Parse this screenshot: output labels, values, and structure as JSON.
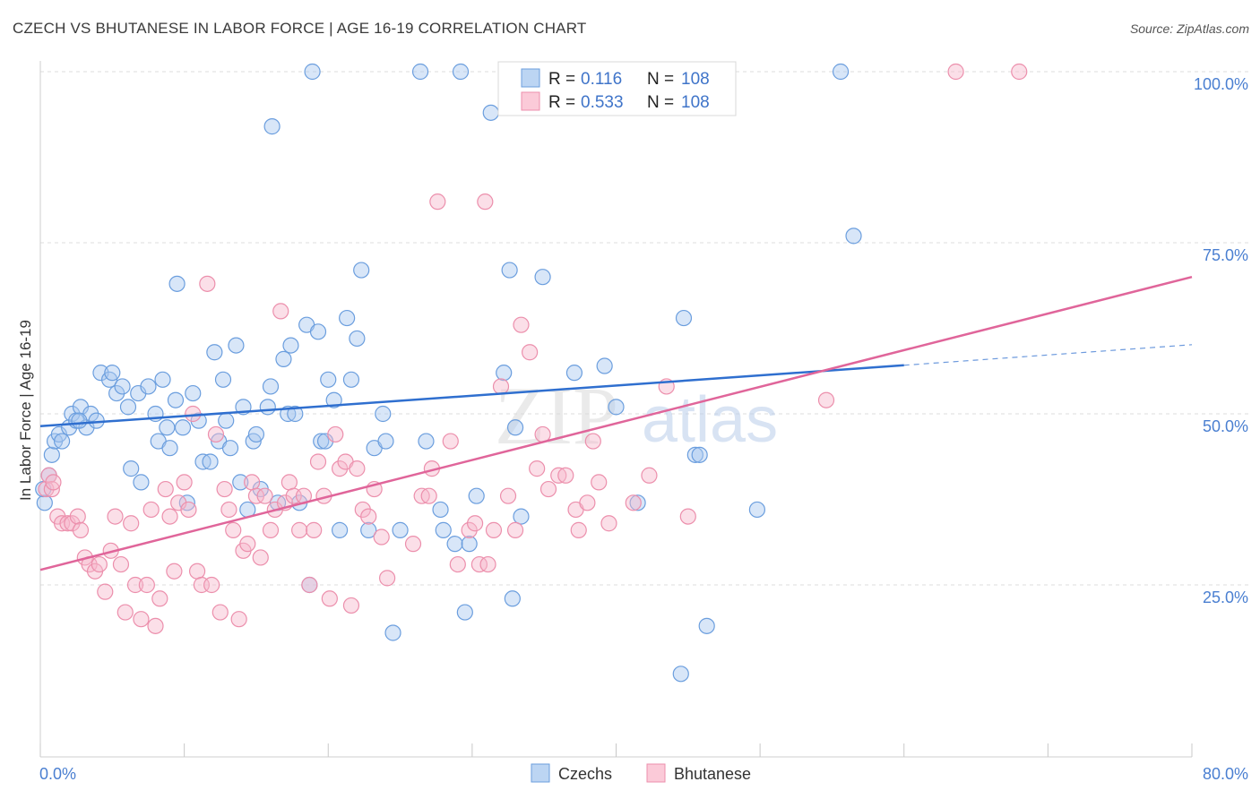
{
  "title": "CZECH VS BHUTANESE IN LABOR FORCE | AGE 16-19 CORRELATION CHART",
  "source": "Source: ZipAtlas.com",
  "watermark": {
    "zip": "ZIP",
    "atlas": "atlas"
  },
  "colors": {
    "czech_fill": "#a8c8ef",
    "czech_stroke": "#6b9ede",
    "czech_line": "#2f6fcf",
    "bhutanese_fill": "#f7b8cb",
    "bhutanese_stroke": "#ec8fac",
    "bhutanese_line": "#e0659a",
    "tick_label": "#4a7fd1",
    "grid": "#dcdcdc"
  },
  "legend": {
    "rows": [
      {
        "r_label": "R =",
        "r_value": "0.116",
        "n_label": "N =",
        "n_value": "108"
      },
      {
        "r_label": "R =",
        "r_value": "0.533",
        "n_label": "N =",
        "n_value": "108"
      }
    ]
  },
  "bottom_legend": [
    "Czechs",
    "Bhutanese"
  ],
  "chart_data": {
    "type": "scatter",
    "title": "CZECH VS BHUTANESE IN LABOR FORCE | AGE 16-19 CORRELATION CHART",
    "xlabel": "",
    "ylabel": "In Labor Force | Age 16-19",
    "xlim": [
      0,
      80
    ],
    "ylim": [
      0,
      105
    ],
    "x_tick_labels": [
      "0.0%",
      "80.0%"
    ],
    "y_ticks": [
      25,
      50,
      75,
      100
    ],
    "y_tick_labels": [
      "25.0%",
      "50.0%",
      "75.0%",
      "100.0%"
    ],
    "grid": true,
    "legend_position": "top-center",
    "series": [
      {
        "name": "Czechs",
        "r": 0.116,
        "n": 108,
        "trend": {
          "x0": 0,
          "y0": 48.2,
          "x1": 60,
          "y1": 57.1,
          "dashed_to_x": 80,
          "dashed_to_y": 60.1
        },
        "points": [
          [
            0.3,
            37
          ],
          [
            0.8,
            44
          ],
          [
            1.0,
            46
          ],
          [
            1.3,
            47
          ],
          [
            1.5,
            46
          ],
          [
            2.0,
            48
          ],
          [
            2.2,
            50
          ],
          [
            2.5,
            49
          ],
          [
            2.8,
            51
          ],
          [
            3.2,
            48
          ],
          [
            3.5,
            50
          ],
          [
            3.9,
            49
          ],
          [
            4.2,
            56
          ],
          [
            4.8,
            55
          ],
          [
            5.0,
            56
          ],
          [
            5.3,
            53
          ],
          [
            5.7,
            54
          ],
          [
            6.1,
            51
          ],
          [
            6.3,
            42
          ],
          [
            6.8,
            53
          ],
          [
            7.0,
            40
          ],
          [
            7.5,
            54
          ],
          [
            8.0,
            50
          ],
          [
            8.2,
            46
          ],
          [
            8.5,
            55
          ],
          [
            8.8,
            48
          ],
          [
            9.0,
            45
          ],
          [
            9.4,
            52
          ],
          [
            9.5,
            69
          ],
          [
            9.9,
            48
          ],
          [
            10.2,
            37
          ],
          [
            10.6,
            53
          ],
          [
            11.0,
            49
          ],
          [
            11.3,
            43
          ],
          [
            11.8,
            43
          ],
          [
            12.1,
            59
          ],
          [
            12.4,
            46
          ],
          [
            12.7,
            55
          ],
          [
            12.9,
            49
          ],
          [
            13.2,
            45
          ],
          [
            13.6,
            60
          ],
          [
            13.9,
            40
          ],
          [
            14.1,
            51
          ],
          [
            14.4,
            36
          ],
          [
            14.8,
            46
          ],
          [
            15.0,
            47
          ],
          [
            15.3,
            39
          ],
          [
            15.8,
            51
          ],
          [
            16.0,
            54
          ],
          [
            16.1,
            92
          ],
          [
            16.5,
            37
          ],
          [
            16.9,
            58
          ],
          [
            17.2,
            50
          ],
          [
            17.4,
            60
          ],
          [
            17.7,
            50
          ],
          [
            18.0,
            37
          ],
          [
            18.5,
            63
          ],
          [
            18.7,
            25
          ],
          [
            18.9,
            100
          ],
          [
            19.3,
            62
          ],
          [
            19.5,
            46
          ],
          [
            19.8,
            46
          ],
          [
            20.0,
            55
          ],
          [
            20.4,
            52
          ],
          [
            20.8,
            33
          ],
          [
            21.3,
            64
          ],
          [
            21.6,
            55
          ],
          [
            22.0,
            61
          ],
          [
            22.3,
            71
          ],
          [
            22.8,
            33
          ],
          [
            23.2,
            45
          ],
          [
            23.8,
            50
          ],
          [
            24.0,
            46
          ],
          [
            24.5,
            18
          ],
          [
            25.0,
            33
          ],
          [
            26.4,
            100
          ],
          [
            26.8,
            46
          ],
          [
            27.8,
            36
          ],
          [
            28.0,
            33
          ],
          [
            28.8,
            31
          ],
          [
            29.2,
            100
          ],
          [
            29.5,
            21
          ],
          [
            29.8,
            31
          ],
          [
            30.3,
            38
          ],
          [
            31.3,
            94
          ],
          [
            32.2,
            56
          ],
          [
            32.6,
            71
          ],
          [
            32.8,
            23
          ],
          [
            33.0,
            48
          ],
          [
            33.4,
            35
          ],
          [
            34.9,
            70
          ],
          [
            35.5,
            100
          ],
          [
            37.1,
            56
          ],
          [
            37.8,
            100
          ],
          [
            39.2,
            57
          ],
          [
            40.0,
            51
          ],
          [
            41.5,
            37
          ],
          [
            44.5,
            12
          ],
          [
            44.7,
            64
          ],
          [
            45.5,
            44
          ],
          [
            45.8,
            44
          ],
          [
            46.3,
            19
          ],
          [
            49.8,
            36
          ],
          [
            55.6,
            100
          ],
          [
            56.5,
            76
          ],
          [
            0.2,
            39
          ],
          [
            0.6,
            41
          ],
          [
            2.7,
            49
          ]
        ]
      },
      {
        "name": "Bhutanese",
        "r": 0.533,
        "n": 108,
        "trend": {
          "x0": 0,
          "y0": 27.2,
          "x1": 80,
          "y1": 70.0
        },
        "points": [
          [
            0.4,
            39
          ],
          [
            0.6,
            41
          ],
          [
            0.8,
            39
          ],
          [
            1.2,
            35
          ],
          [
            1.5,
            34
          ],
          [
            1.9,
            34
          ],
          [
            2.2,
            34
          ],
          [
            2.6,
            35
          ],
          [
            2.8,
            33
          ],
          [
            3.1,
            29
          ],
          [
            3.4,
            28
          ],
          [
            3.8,
            27
          ],
          [
            4.1,
            28
          ],
          [
            4.5,
            24
          ],
          [
            4.9,
            30
          ],
          [
            5.2,
            35
          ],
          [
            5.6,
            28
          ],
          [
            5.9,
            21
          ],
          [
            6.3,
            34
          ],
          [
            6.6,
            25
          ],
          [
            7.0,
            20
          ],
          [
            7.4,
            25
          ],
          [
            7.7,
            36
          ],
          [
            8.0,
            19
          ],
          [
            8.3,
            23
          ],
          [
            8.7,
            39
          ],
          [
            9.0,
            35
          ],
          [
            9.3,
            27
          ],
          [
            9.6,
            37
          ],
          [
            10.0,
            40
          ],
          [
            10.3,
            36
          ],
          [
            10.6,
            50
          ],
          [
            10.9,
            27
          ],
          [
            11.2,
            25
          ],
          [
            11.6,
            69
          ],
          [
            11.9,
            25
          ],
          [
            12.2,
            47
          ],
          [
            12.5,
            21
          ],
          [
            12.8,
            39
          ],
          [
            13.1,
            36
          ],
          [
            13.4,
            33
          ],
          [
            13.8,
            20
          ],
          [
            14.1,
            30
          ],
          [
            14.4,
            31
          ],
          [
            14.7,
            40
          ],
          [
            15.0,
            38
          ],
          [
            15.3,
            29
          ],
          [
            15.6,
            38
          ],
          [
            16.0,
            33
          ],
          [
            16.3,
            36
          ],
          [
            16.7,
            65
          ],
          [
            17.0,
            37
          ],
          [
            17.3,
            40
          ],
          [
            17.6,
            38
          ],
          [
            18.0,
            33
          ],
          [
            18.3,
            38
          ],
          [
            18.7,
            25
          ],
          [
            19.0,
            33
          ],
          [
            19.3,
            43
          ],
          [
            19.7,
            38
          ],
          [
            20.1,
            23
          ],
          [
            20.5,
            47
          ],
          [
            20.8,
            42
          ],
          [
            21.2,
            43
          ],
          [
            21.6,
            22
          ],
          [
            22.0,
            42
          ],
          [
            22.4,
            36
          ],
          [
            22.8,
            35
          ],
          [
            23.2,
            39
          ],
          [
            23.7,
            32
          ],
          [
            24.1,
            26
          ],
          [
            25.9,
            31
          ],
          [
            26.5,
            38
          ],
          [
            27.2,
            42
          ],
          [
            27.6,
            81
          ],
          [
            28.5,
            46
          ],
          [
            29.0,
            28
          ],
          [
            29.8,
            33
          ],
          [
            30.2,
            34
          ],
          [
            30.9,
            81
          ],
          [
            30.5,
            28
          ],
          [
            31.1,
            28
          ],
          [
            31.5,
            33
          ],
          [
            32.0,
            54
          ],
          [
            32.5,
            38
          ],
          [
            33.0,
            33
          ],
          [
            34.0,
            59
          ],
          [
            34.5,
            42
          ],
          [
            34.9,
            47
          ],
          [
            35.3,
            39
          ],
          [
            36.0,
            41
          ],
          [
            36.5,
            41
          ],
          [
            37.2,
            36
          ],
          [
            37.4,
            33
          ],
          [
            38.0,
            37
          ],
          [
            38.4,
            46
          ],
          [
            38.8,
            40
          ],
          [
            39.5,
            34
          ],
          [
            41.2,
            37
          ],
          [
            42.3,
            41
          ],
          [
            43.5,
            54
          ],
          [
            45.0,
            35
          ],
          [
            54.6,
            52
          ],
          [
            63.6,
            100
          ],
          [
            68.0,
            100
          ],
          [
            33.4,
            63
          ],
          [
            27.0,
            38
          ],
          [
            0.9,
            40
          ]
        ]
      }
    ]
  }
}
